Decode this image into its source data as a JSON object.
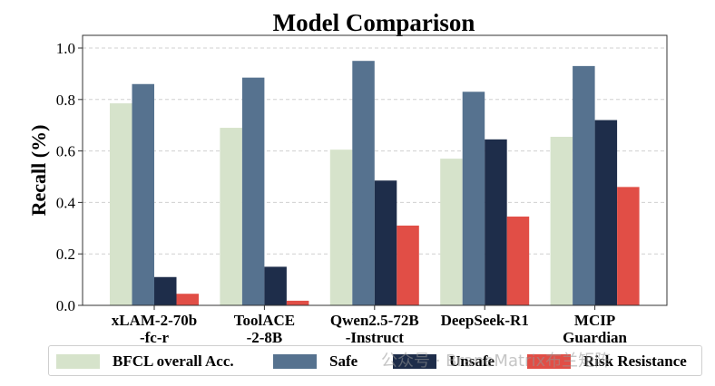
{
  "chart_data": {
    "type": "bar",
    "title": "Model Comparison",
    "xlabel": "",
    "ylabel": "Recall (%)",
    "ylim": [
      0,
      1.0
    ],
    "yticks": [
      "0.0",
      "0.2",
      "0.4",
      "0.6",
      "0.8",
      "1.0"
    ],
    "grid": "horizontal dashed",
    "legend_position": "bottom",
    "categories": [
      [
        "xLAM-2-70b",
        "-fc-r"
      ],
      [
        "ToolACE",
        "-2-8B"
      ],
      [
        "Qwen2.5-72B",
        "-Instruct"
      ],
      [
        "DeepSeek-R1"
      ],
      [
        "MCIP",
        "Guardian"
      ]
    ],
    "series": [
      {
        "name": "BFCL overall Acc.",
        "color": "#d6e3cb",
        "values": [
          0.785,
          0.69,
          0.605,
          0.57,
          0.655
        ]
      },
      {
        "name": "Safe",
        "color": "#56728f",
        "values": [
          0.86,
          0.885,
          0.95,
          0.83,
          0.93
        ]
      },
      {
        "name": "Unsafe",
        "color": "#1e2d4a",
        "values": [
          0.11,
          0.15,
          0.485,
          0.645,
          0.72
        ]
      },
      {
        "name": "Risk Resistance",
        "color": "#e14e46",
        "values": [
          0.045,
          0.018,
          0.31,
          0.345,
          0.46
        ]
      }
    ]
  },
  "watermark": "公众号 · BraneMatrix布兰矩阵"
}
